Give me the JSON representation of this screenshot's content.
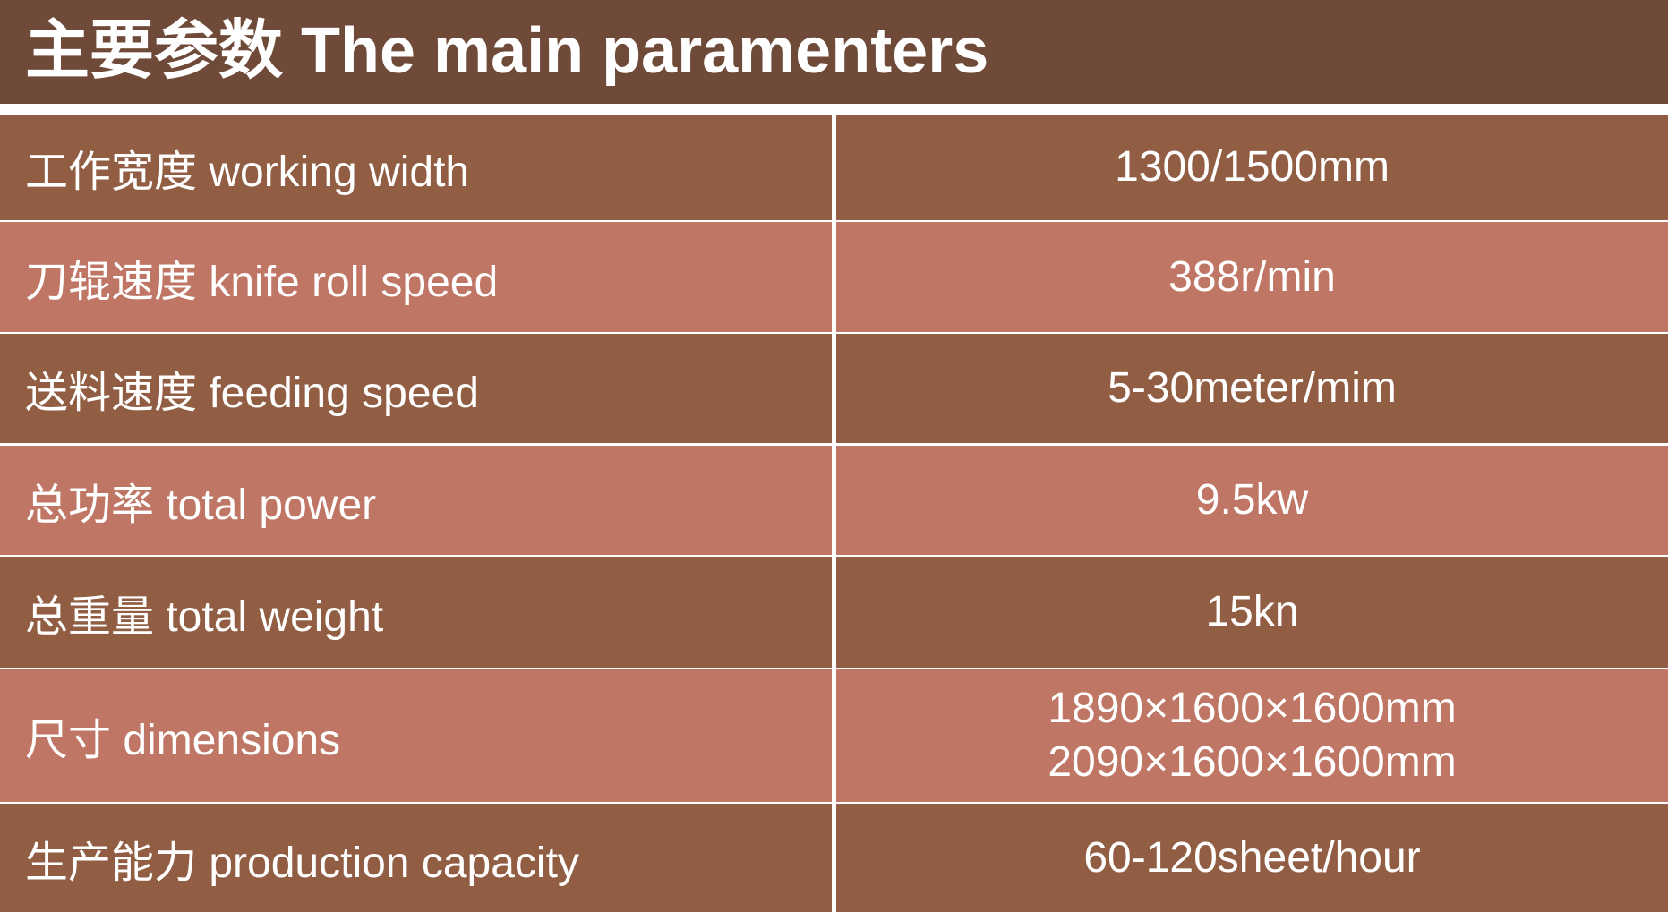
{
  "colors": {
    "header": "#6f4a38",
    "row_dark": "#915e44",
    "row_light": "#bf7664"
  },
  "title": "主要参数 The main paramenters",
  "rows": [
    {
      "label": "工作宽度 working width",
      "value": "1300/1500mm"
    },
    {
      "label": "刀辊速度 knife roll speed",
      "value": "388r/min"
    },
    {
      "label": "送料速度 feeding speed",
      "value": "5-30meter/mim"
    },
    {
      "label": "总功率 total power",
      "value": "9.5kw"
    },
    {
      "label": "总重量 total weight",
      "value": "15kn"
    },
    {
      "label": "尺寸 dimensions",
      "value": "1890×1600×1600mm",
      "value2": "2090×1600×1600mm"
    },
    {
      "label": "生产能力 production capacity",
      "value": "60-120sheet/hour"
    }
  ]
}
